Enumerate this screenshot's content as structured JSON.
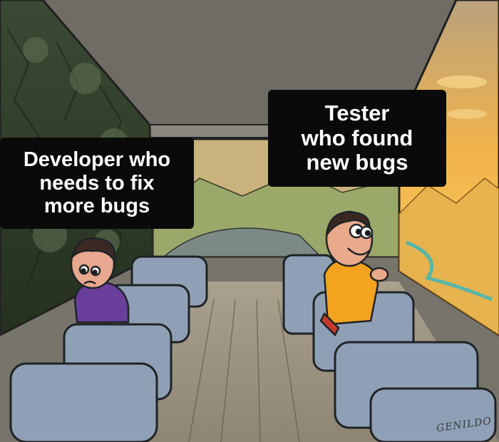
{
  "captions": {
    "left": [
      "Developer who",
      "needs to fix",
      "more bugs"
    ],
    "right": [
      "Tester",
      "who found",
      "new bugs"
    ]
  },
  "signature": "GENILDO",
  "colors": {
    "caption_bg": "#0a0a0a",
    "caption_text": "#ffffff",
    "seat": "#8fa0b6",
    "sunset_sky": "#f2b34a",
    "sad_shirt": "#6a3f9c",
    "happy_shirt": "#f3a31d"
  }
}
